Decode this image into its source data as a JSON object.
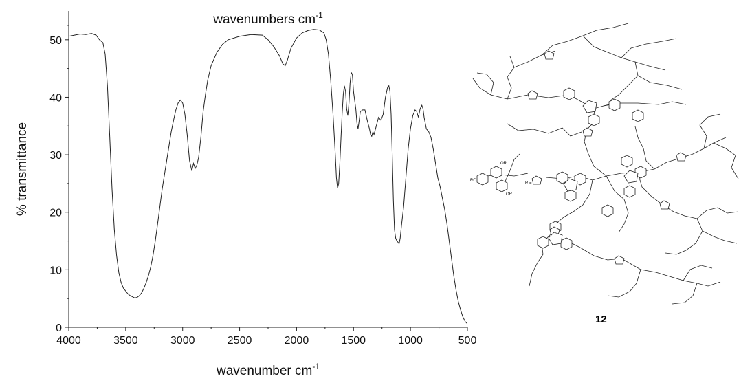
{
  "chart_data": {
    "type": "line",
    "title": "wavenumbers cm",
    "title_sup": "-1",
    "xlabel": "wavenumber cm",
    "xlabel_sup": "-1",
    "ylabel": "% transmittance",
    "xlim": [
      4000,
      500
    ],
    "ylim": [
      0,
      55
    ],
    "x_reversed": true,
    "x_ticks": [
      "4000",
      "3500",
      "3000",
      "2500",
      "2000",
      "1500",
      "1000",
      "500"
    ],
    "y_ticks": [
      "0",
      "10",
      "20",
      "30",
      "40",
      "50"
    ],
    "series": [
      {
        "color": "#222222",
        "points": [
          [
            4000,
            50.6
          ],
          [
            3950,
            50.8
          ],
          [
            3900,
            51.0
          ],
          [
            3850,
            50.9
          ],
          [
            3800,
            51.1
          ],
          [
            3760,
            50.8
          ],
          [
            3730,
            50.0
          ],
          [
            3700,
            49.5
          ],
          [
            3680,
            47.5
          ],
          [
            3660,
            42.0
          ],
          [
            3640,
            33.0
          ],
          [
            3620,
            24.0
          ],
          [
            3600,
            17.0
          ],
          [
            3580,
            12.5
          ],
          [
            3560,
            9.5
          ],
          [
            3540,
            7.8
          ],
          [
            3520,
            6.8
          ],
          [
            3500,
            6.3
          ],
          [
            3480,
            5.8
          ],
          [
            3460,
            5.5
          ],
          [
            3440,
            5.3
          ],
          [
            3420,
            5.1
          ],
          [
            3400,
            5.2
          ],
          [
            3380,
            5.5
          ],
          [
            3360,
            6.0
          ],
          [
            3340,
            6.8
          ],
          [
            3320,
            7.8
          ],
          [
            3300,
            9.0
          ],
          [
            3280,
            10.5
          ],
          [
            3260,
            12.5
          ],
          [
            3240,
            15.0
          ],
          [
            3220,
            18.0
          ],
          [
            3200,
            21.0
          ],
          [
            3180,
            24.0
          ],
          [
            3160,
            26.5
          ],
          [
            3140,
            29.0
          ],
          [
            3120,
            31.5
          ],
          [
            3100,
            34.0
          ],
          [
            3080,
            36.0
          ],
          [
            3060,
            37.8
          ],
          [
            3040,
            39.0
          ],
          [
            3020,
            39.5
          ],
          [
            3000,
            39.0
          ],
          [
            2980,
            37.0
          ],
          [
            2960,
            33.5
          ],
          [
            2940,
            29.0
          ],
          [
            2920,
            27.2
          ],
          [
            2905,
            28.5
          ],
          [
            2890,
            27.6
          ],
          [
            2875,
            28.2
          ],
          [
            2860,
            29.5
          ],
          [
            2840,
            33.0
          ],
          [
            2820,
            37.5
          ],
          [
            2800,
            40.5
          ],
          [
            2780,
            43.0
          ],
          [
            2750,
            45.5
          ],
          [
            2700,
            47.8
          ],
          [
            2650,
            49.2
          ],
          [
            2600,
            50.0
          ],
          [
            2500,
            50.6
          ],
          [
            2400,
            50.9
          ],
          [
            2300,
            50.8
          ],
          [
            2250,
            50.0
          ],
          [
            2200,
            48.8
          ],
          [
            2150,
            47.2
          ],
          [
            2120,
            45.8
          ],
          [
            2100,
            45.5
          ],
          [
            2080,
            46.5
          ],
          [
            2050,
            48.5
          ],
          [
            2000,
            50.3
          ],
          [
            1950,
            51.2
          ],
          [
            1900,
            51.6
          ],
          [
            1850,
            51.8
          ],
          [
            1800,
            51.7
          ],
          [
            1760,
            51.2
          ],
          [
            1740,
            50.0
          ],
          [
            1720,
            47.5
          ],
          [
            1700,
            43.0
          ],
          [
            1680,
            37.0
          ],
          [
            1660,
            30.0
          ],
          [
            1650,
            26.0
          ],
          [
            1640,
            24.2
          ],
          [
            1630,
            25.0
          ],
          [
            1620,
            28.5
          ],
          [
            1610,
            33.0
          ],
          [
            1600,
            37.0
          ],
          [
            1590,
            40.5
          ],
          [
            1580,
            42.0
          ],
          [
            1570,
            41.0
          ],
          [
            1560,
            38.0
          ],
          [
            1550,
            36.8
          ],
          [
            1540,
            39.0
          ],
          [
            1530,
            42.5
          ],
          [
            1520,
            44.3
          ],
          [
            1510,
            44.0
          ],
          [
            1500,
            41.0
          ],
          [
            1490,
            39.5
          ],
          [
            1480,
            38.0
          ],
          [
            1470,
            35.5
          ],
          [
            1460,
            34.5
          ],
          [
            1450,
            36.0
          ],
          [
            1440,
            37.5
          ],
          [
            1420,
            37.8
          ],
          [
            1400,
            37.8
          ],
          [
            1380,
            36.0
          ],
          [
            1360,
            34.5
          ],
          [
            1350,
            33.5
          ],
          [
            1340,
            33.2
          ],
          [
            1330,
            34.0
          ],
          [
            1320,
            33.5
          ],
          [
            1300,
            35.0
          ],
          [
            1280,
            36.5
          ],
          [
            1260,
            36.0
          ],
          [
            1240,
            37.0
          ],
          [
            1220,
            40.0
          ],
          [
            1200,
            41.8
          ],
          [
            1190,
            42.0
          ],
          [
            1180,
            41.0
          ],
          [
            1170,
            37.0
          ],
          [
            1160,
            30.0
          ],
          [
            1150,
            22.0
          ],
          [
            1140,
            17.0
          ],
          [
            1130,
            15.5
          ],
          [
            1120,
            15.0
          ],
          [
            1110,
            14.8
          ],
          [
            1100,
            14.5
          ],
          [
            1090,
            15.5
          ],
          [
            1080,
            17.5
          ],
          [
            1060,
            21.0
          ],
          [
            1040,
            26.0
          ],
          [
            1020,
            31.0
          ],
          [
            1000,
            34.5
          ],
          [
            980,
            36.8
          ],
          [
            960,
            37.8
          ],
          [
            945,
            37.5
          ],
          [
            930,
            36.5
          ],
          [
            915,
            38.0
          ],
          [
            900,
            38.6
          ],
          [
            890,
            38.0
          ],
          [
            880,
            36.5
          ],
          [
            860,
            34.5
          ],
          [
            840,
            34.0
          ],
          [
            820,
            33.0
          ],
          [
            800,
            31.0
          ],
          [
            780,
            28.5
          ],
          [
            760,
            26.0
          ],
          [
            740,
            24.5
          ],
          [
            720,
            22.5
          ],
          [
            700,
            20.5
          ],
          [
            680,
            18.0
          ],
          [
            660,
            15.0
          ],
          [
            640,
            12.0
          ],
          [
            620,
            9.0
          ],
          [
            600,
            6.5
          ],
          [
            580,
            4.5
          ],
          [
            560,
            3.0
          ],
          [
            540,
            1.8
          ],
          [
            520,
            1.0
          ],
          [
            505,
            0.7
          ]
        ]
      }
    ]
  },
  "structure": {
    "compound_number": "12",
    "r_label_left": "RO",
    "r_label_top": "OR",
    "r_label_bottom": "OR",
    "r_equals": "R ="
  }
}
